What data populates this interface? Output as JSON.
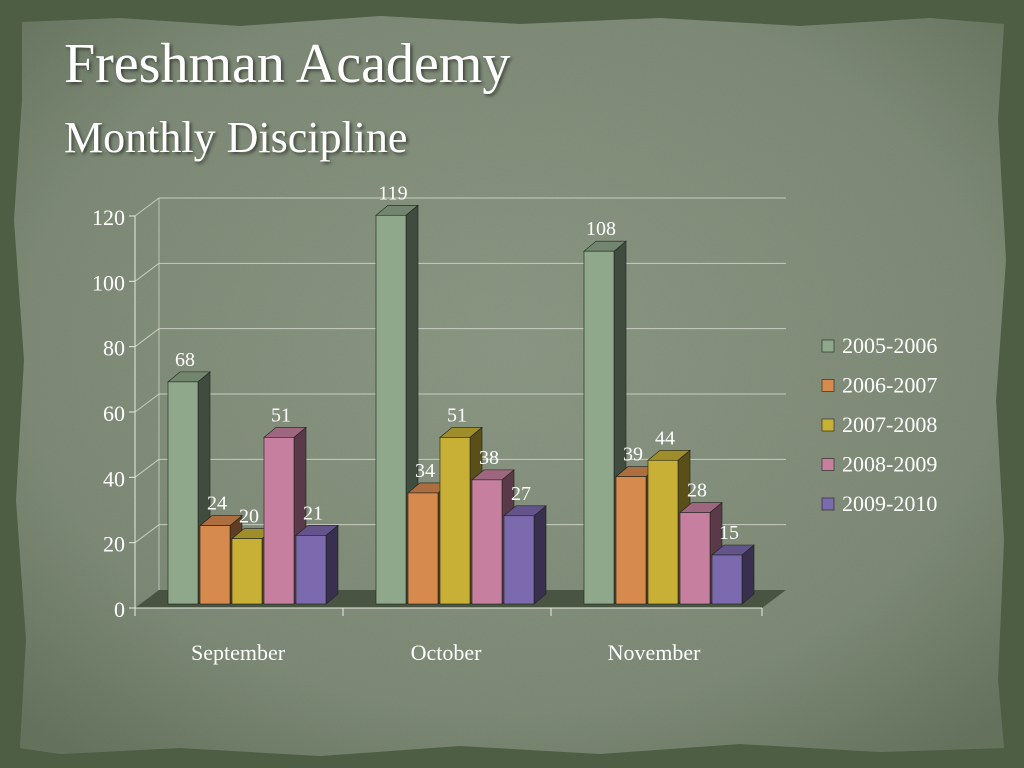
{
  "slide": {
    "title": "Freshman Academy",
    "subtitle": "Monthly Discipline"
  },
  "chart_data": {
    "type": "bar",
    "categories": [
      "September",
      "October",
      "November"
    ],
    "series": [
      {
        "name": "2005-2006",
        "values": [
          68,
          119,
          108
        ],
        "color": "#8fa88b"
      },
      {
        "name": "2006-2007",
        "values": [
          24,
          34,
          39
        ],
        "color": "#d78a4e"
      },
      {
        "name": "2007-2008",
        "values": [
          20,
          51,
          44
        ],
        "color": "#c7b035"
      },
      {
        "name": "2008-2009",
        "values": [
          51,
          38,
          28
        ],
        "color": "#c77fa0"
      },
      {
        "name": "2009-2010",
        "values": [
          21,
          27,
          15
        ],
        "color": "#7c6aae"
      }
    ],
    "ylim": [
      0,
      120
    ],
    "yticks": [
      0,
      20,
      40,
      60,
      80,
      100,
      120
    ],
    "grid": true,
    "legend": "right",
    "three_d": true
  }
}
